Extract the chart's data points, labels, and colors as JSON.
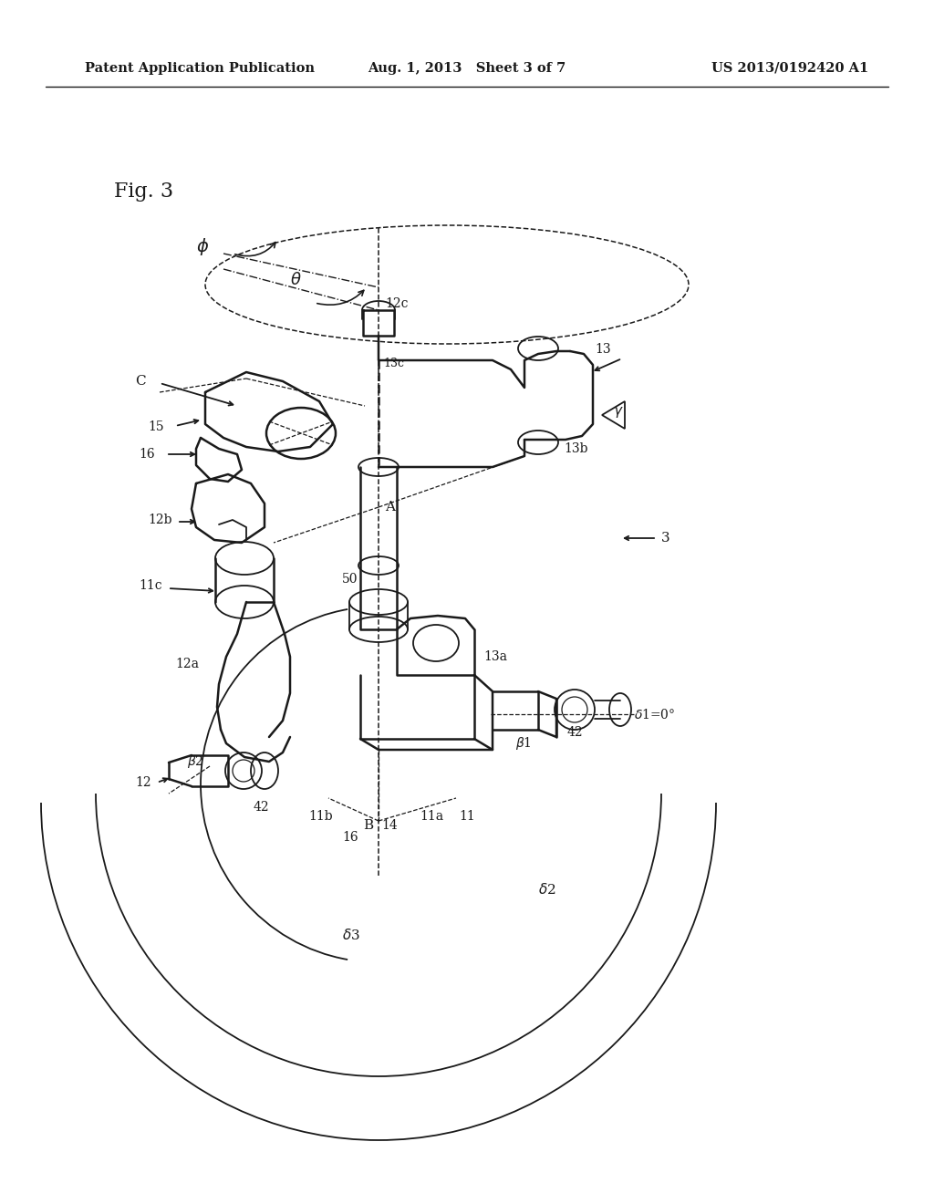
{
  "background_color": "#ffffff",
  "header_left": "Patent Application Publication",
  "header_center": "Aug. 1, 2013   Sheet 3 of 7",
  "header_right": "US 2013/0192420 A1",
  "fig_label": "Fig. 3",
  "line_color": "#1a1a1a",
  "text_color": "#1a1a1a",
  "lw_thick": 1.8,
  "lw_med": 1.3,
  "lw_thin": 0.9
}
